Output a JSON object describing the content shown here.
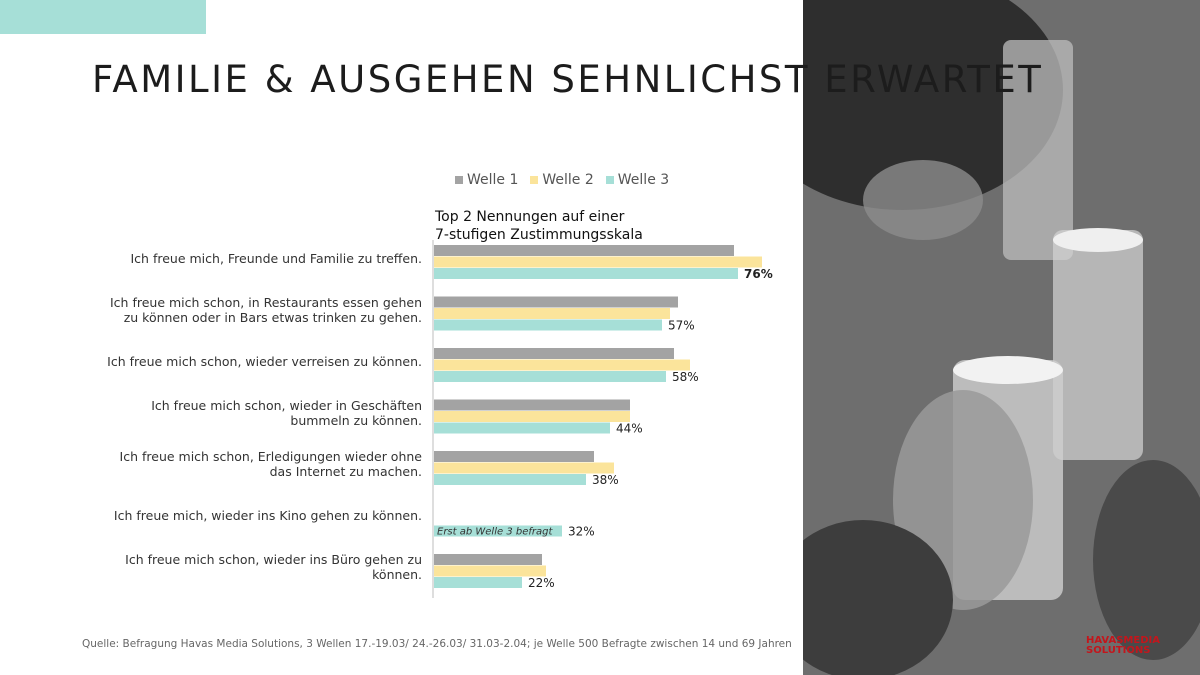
{
  "slide": {
    "title": "FAMILIE & AUSGEHEN SEHNLICHST ERWARTET",
    "source": "Quelle: Befragung Havas Media Solutions, 3 Wellen 17.-19.03/ 24.-26.03/ 31.03-2.04; je Welle 500 Befragte zwischen 14 und 69 Jahren",
    "logo_line1": "HAVASMEDIA",
    "logo_line2": "SOLUTIONS",
    "accent_color": "#a6dfd7"
  },
  "chart_data": {
    "type": "bar",
    "orientation": "horizontal",
    "subtitle": "Top 2 Nennungen auf einer 7-stufigen Zustimmungsskala",
    "subtitle_line1": "Top 2 Nennungen auf einer",
    "subtitle_line2": "7-stufigen Zustimmungsskala",
    "legend_position": "top",
    "grid": false,
    "xlim": [
      0,
      100
    ],
    "categories": [
      [
        "Ich freue mich, Freunde und Familie zu treffen."
      ],
      [
        "Ich freue mich schon, in Restaurants essen gehen",
        "zu können oder in Bars etwas trinken zu gehen."
      ],
      [
        "Ich freue mich schon, wieder verreisen zu können."
      ],
      [
        "Ich freue mich schon, wieder in Geschäften",
        "bummeln zu können."
      ],
      [
        "Ich freue mich schon, Erledigungen wieder ohne",
        "das Internet zu machen."
      ],
      [
        "Ich freue mich, wieder ins Kino gehen zu können."
      ],
      [
        "Ich freue mich schon, wieder ins Büro gehen zu",
        "können."
      ]
    ],
    "series": [
      {
        "name": "Welle 1",
        "color": "#a3a3a3",
        "values": [
          75,
          61,
          60,
          49,
          40,
          null,
          27
        ]
      },
      {
        "name": "Welle 2",
        "color": "#fbe49b",
        "values": [
          82,
          59,
          64,
          49,
          45,
          null,
          28
        ]
      },
      {
        "name": "Welle 3",
        "color": "#a6dfd7",
        "values": [
          76,
          57,
          58,
          44,
          38,
          32,
          22
        ]
      }
    ],
    "data_labels": [
      "76%",
      "57%",
      "58%",
      "44%",
      "38%",
      "32%",
      "22%"
    ],
    "annotation": "Erst ab Welle 3 befragt"
  }
}
